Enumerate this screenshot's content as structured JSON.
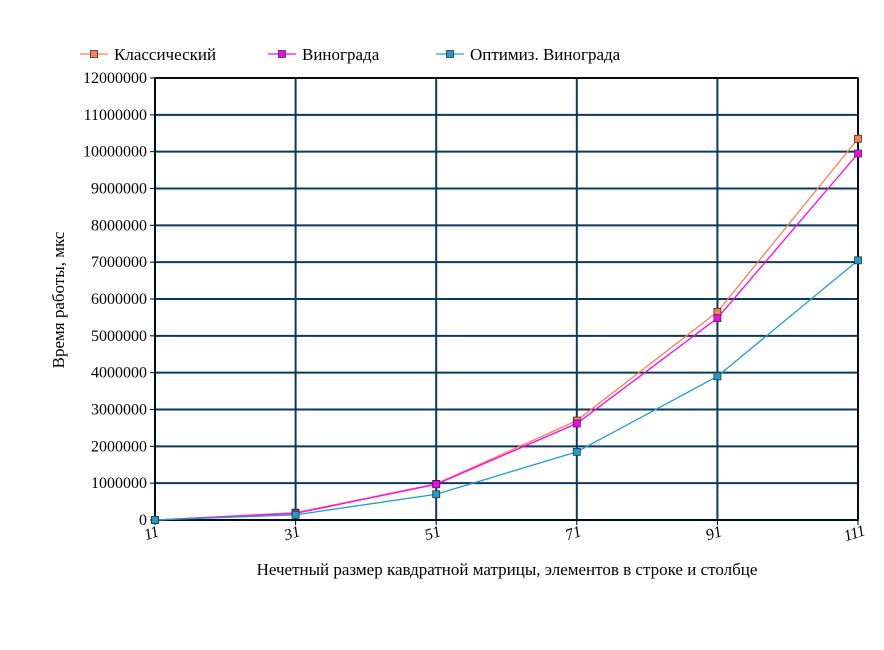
{
  "chart_data": {
    "type": "line",
    "title": "",
    "xlabel": "Нечетный размер кавдратной матрицы, элементов в строке и столбце",
    "ylabel": "Время работы, мкс",
    "x": [
      11,
      31,
      51,
      71,
      91,
      111
    ],
    "x_tick_labels": [
      "11",
      "31",
      "51",
      "71",
      "91",
      "111"
    ],
    "ylim": [
      0,
      12000000
    ],
    "y_ticks": [
      0,
      1000000,
      2000000,
      3000000,
      4000000,
      5000000,
      6000000,
      7000000,
      8000000,
      9000000,
      10000000,
      11000000,
      12000000
    ],
    "y_tick_labels": [
      "0",
      "1000000",
      "2000000",
      "3000000",
      "4000000",
      "5000000",
      "6000000",
      "7000000",
      "8000000",
      "9000000",
      "10000000",
      "11000000",
      "12000000"
    ],
    "grid": true,
    "legend_position": "top",
    "series": [
      {
        "name": "Классический",
        "color": "#ff7f50",
        "line_color": "#ff7f50",
        "marker": "square",
        "values": [
          0,
          200000,
          980000,
          2700000,
          5650000,
          10350000
        ]
      },
      {
        "name": "Винограда",
        "color": "#ff00ff",
        "line_color": "#ff00ff",
        "marker": "square",
        "values": [
          0,
          180000,
          970000,
          2620000,
          5480000,
          9950000
        ]
      },
      {
        "name": "Оптимиз. Винограда",
        "color": "#1e9ed0",
        "line_color": "#1e9ed0",
        "marker": "square",
        "values": [
          0,
          140000,
          700000,
          1850000,
          3900000,
          7050000
        ]
      }
    ],
    "colors": {
      "grid": "#0b3a5c",
      "plot_border": "#000000"
    }
  }
}
